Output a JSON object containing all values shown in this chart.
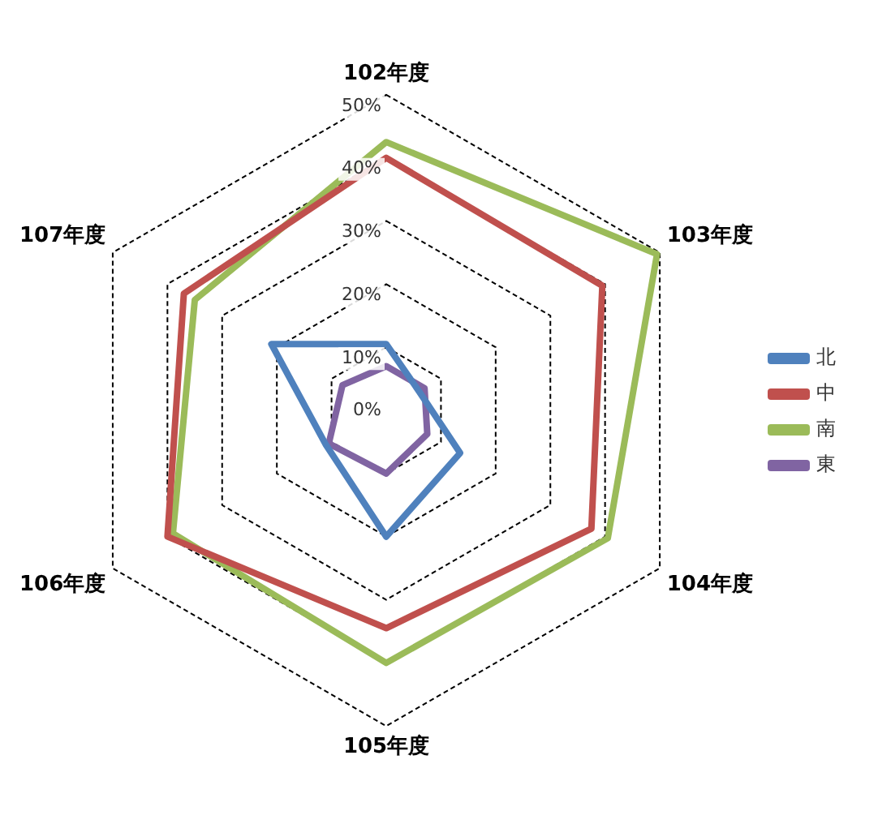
{
  "chart_data": {
    "type": "radar",
    "categories": [
      "102年度",
      "103年度",
      "104年度",
      "105年度",
      "106年度",
      "107年度"
    ],
    "series": [
      {
        "name": "北",
        "color": "#4f81bd",
        "values": [
          10.5,
          6,
          13.5,
          20,
          11,
          21
        ]
      },
      {
        "name": "中",
        "color": "#c0504d",
        "values": [
          40,
          39.5,
          37.5,
          34.5,
          40,
          37
        ]
      },
      {
        "name": "南",
        "color": "#9bbb59",
        "values": [
          42.5,
          49.5,
          40.5,
          40,
          39,
          35
        ]
      },
      {
        "name": "東",
        "color": "#8064a2",
        "values": [
          7,
          7,
          7.5,
          10,
          10.5,
          8
        ]
      }
    ],
    "ylim": [
      0,
      50
    ],
    "yticks": [
      {
        "value": 0,
        "label": "0%"
      },
      {
        "value": 10,
        "label": "10%"
      },
      {
        "value": 20,
        "label": "20%"
      },
      {
        "value": 30,
        "label": "30%"
      },
      {
        "value": 40,
        "label": "40%"
      },
      {
        "value": 50,
        "label": "50%"
      }
    ],
    "grid": true,
    "legend": "right",
    "marker": "none"
  }
}
